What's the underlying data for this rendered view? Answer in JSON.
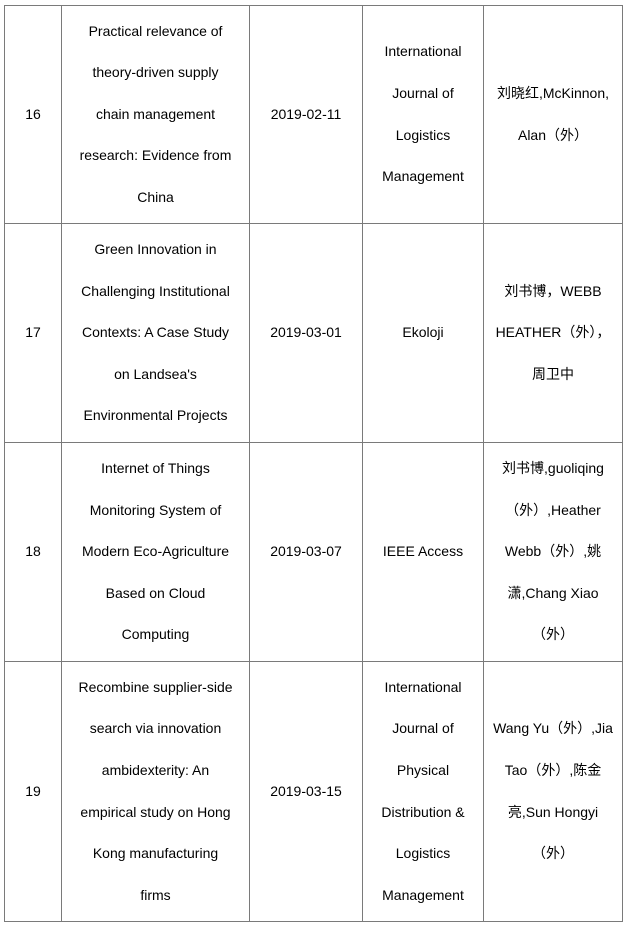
{
  "rows": [
    {
      "no": "16",
      "title": [
        "Practical relevance of",
        "theory-driven supply",
        "chain management",
        "research: Evidence from",
        "China"
      ],
      "date": "2019-02-11",
      "journal": [
        "International",
        "Journal of",
        "Logistics",
        "Management"
      ],
      "authors": [
        "刘晓红,McKinnon,",
        "Alan（外）"
      ]
    },
    {
      "no": "17",
      "title": [
        "Green Innovation in",
        "Challenging Institutional",
        "Contexts: A Case Study",
        "on Landsea's",
        "Environmental Projects"
      ],
      "date": "2019-03-01",
      "journal": [
        "Ekoloji"
      ],
      "authors": [
        "刘书博，WEBB",
        "HEATHER（外），",
        "周卫中"
      ]
    },
    {
      "no": "18",
      "title": [
        "Internet of Things",
        "Monitoring System of",
        "Modern Eco-Agriculture",
        "Based on Cloud",
        "Computing"
      ],
      "date": "2019-03-07",
      "journal": [
        "IEEE Access"
      ],
      "authors": [
        "刘书博,guoliqing",
        "（外）,Heather",
        "Webb（外）,姚",
        "潇,Chang Xiao",
        "（外）"
      ]
    },
    {
      "no": "19",
      "title": [
        "Recombine supplier-side",
        "search via innovation",
        "ambidexterity: An",
        "empirical study on Hong",
        "Kong manufacturing",
        "firms"
      ],
      "date": "2019-03-15",
      "journal": [
        "International",
        "Journal of",
        "Physical",
        "Distribution &",
        "Logistics",
        "Management"
      ],
      "authors": [
        "Wang Yu（外）,Jia",
        "Tao（外）,陈金",
        "亮,Sun Hongyi",
        "（外）"
      ]
    }
  ]
}
